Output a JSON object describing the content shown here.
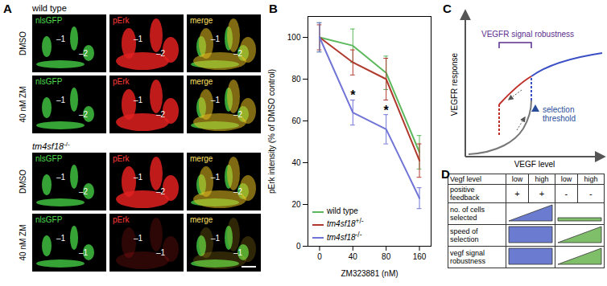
{
  "panel_labels": [
    "A",
    "B",
    "C",
    "D"
  ],
  "panel_a": {
    "channels": [
      "nlsGFP",
      "pErk",
      "merge"
    ],
    "groups": [
      {
        "title": "wild type",
        "rows": [
          {
            "label": "DMSO",
            "cell_labels": [
              "–1",
              "–2"
            ]
          },
          {
            "label": "40 nM ZM",
            "cell_labels": [
              "–1",
              "–2"
            ]
          }
        ]
      },
      {
        "title": "tm4sf18-/-",
        "rows": [
          {
            "label": "DMSO",
            "cell_labels": [
              "–1",
              "–2"
            ]
          },
          {
            "label": "40 nM ZM",
            "cell_labels": [
              "–1",
              "–1"
            ]
          }
        ]
      }
    ]
  },
  "chart_data": {
    "type": "line",
    "categories": [
      "0",
      "40",
      "80",
      "160"
    ],
    "x_label": "ZM323881 (nM)",
    "y_label": "pErk intensity (% of DMSO control)",
    "ylim": [
      0,
      110
    ],
    "yticks": [
      0,
      20,
      40,
      60,
      80,
      100
    ],
    "legend": "lower left",
    "marker": "none",
    "series": [
      {
        "name": "wild type",
        "color": "#5cb85c",
        "values": [
          100,
          96,
          83,
          45
        ],
        "errors": [
          7,
          8,
          8,
          8
        ]
      },
      {
        "name": "tm4sf18+/-",
        "color": "#b0392e",
        "values": [
          100,
          88,
          80,
          41
        ],
        "errors": [
          6,
          6,
          10,
          8
        ]
      },
      {
        "name": "tm4sf18-/-",
        "color": "#7074d6",
        "values": [
          100,
          64,
          56,
          23
        ],
        "errors": [
          7,
          6,
          7,
          5
        ]
      }
    ],
    "annotations": [
      {
        "text": "*",
        "x": "40",
        "y": 72
      },
      {
        "text": "*",
        "x": "80",
        "y": 65
      }
    ]
  },
  "panel_c": {
    "y_label": "VEGFR response",
    "x_label": "VEGF level",
    "bracket_label": "VEGFR signal robustness",
    "threshold_label": [
      "selection",
      "threshold"
    ]
  },
  "panel_d": {
    "header": [
      "Vegf level",
      "low",
      "high",
      "low",
      "high"
    ],
    "rows": [
      [
        "positive feedback",
        "+",
        "+",
        "-",
        "-"
      ],
      [
        "no. of cells selected"
      ],
      [
        "speed of selection"
      ],
      [
        "vegf signal robustness"
      ]
    ]
  }
}
